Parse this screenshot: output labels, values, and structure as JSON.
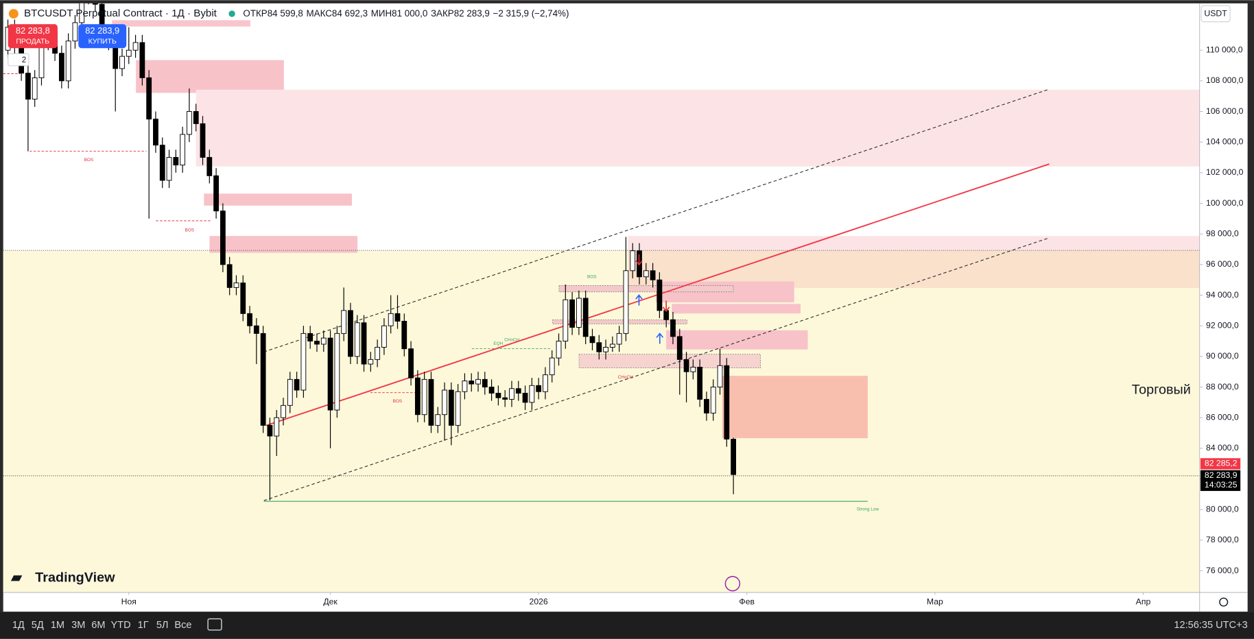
{
  "header": {
    "symbol": "BTCUSDT Perpetual Contract · 1Д · Bybit",
    "open_label": "ОТКР",
    "open": "84 599,8",
    "high_label": "МАКС",
    "high": "84 692,3",
    "low_label": "МИН",
    "low": "81 000,0",
    "close_label": "ЗАКР",
    "close": "82 283,9",
    "change": "−2 315,9 (−2,74%)"
  },
  "trade": {
    "sell_price": "82 283,8",
    "sell": "ПРОДАТЬ",
    "buy_price": "82 283,9",
    "buy": "КУПИТЬ",
    "quantity": "2"
  },
  "currency": "USDT",
  "brand": "TradingView",
  "annotations": [
    "BOS",
    "BOS",
    "BOS",
    "BOS",
    "CHoCH",
    "EQH",
    "CHoCH",
    "Strong Low",
    "Торговый"
  ],
  "price_labels": {
    "alert": "82 285,2",
    "last": "82 283,9",
    "countdown": "14:03:25"
  },
  "toolbar": {
    "ranges": [
      "1Д",
      "5Д",
      "1М",
      "3М",
      "6М",
      "YTD",
      "1Г",
      "5Л",
      "Все"
    ],
    "clock": "12:56:35 UTC+3"
  },
  "chart_data": {
    "type": "candlestick",
    "up_color": "#ffffff",
    "down_color": "#000000",
    "wick_color": "#000000",
    "x": [
      -18,
      -17,
      -16,
      -15,
      -14,
      -13,
      -12,
      -11,
      -10,
      -9,
      -8,
      -7,
      -6,
      -5,
      -4,
      -3,
      -2,
      -1,
      0,
      1,
      2,
      3,
      4,
      5,
      6,
      7,
      8,
      9,
      10,
      11,
      12,
      13,
      14,
      15,
      16,
      17,
      18,
      19,
      20,
      21,
      22,
      23,
      24,
      25,
      26,
      27,
      28,
      29,
      30,
      31,
      32,
      33,
      34,
      35,
      36,
      37,
      38,
      39,
      40,
      41,
      42,
      43,
      44,
      45,
      46,
      47,
      48,
      49,
      50,
      51,
      52,
      53,
      54,
      55,
      56,
      57,
      58,
      59,
      60,
      61,
      62,
      63,
      64,
      65,
      66,
      67,
      68,
      69,
      70,
      71,
      72,
      73,
      74,
      75,
      76,
      77,
      78,
      79,
      80,
      81,
      82,
      83,
      84,
      85,
      86,
      87,
      88,
      89,
      90
    ],
    "open": [
      110000,
      111500,
      110200,
      108500,
      106800,
      108200,
      110500,
      111200,
      109800,
      108000,
      110600,
      111800,
      113500,
      114200,
      113000,
      111000,
      110500,
      108800,
      109600,
      110000,
      110500,
      108200,
      105500,
      103800,
      101500,
      103000,
      102500,
      104500,
      106000,
      105200,
      103000,
      101800,
      99500,
      96000,
      94500,
      94800,
      92800,
      92000,
      91500,
      85500,
      84800,
      86000,
      86800,
      88500,
      87800,
      91500,
      91000,
      90800,
      91200,
      86500,
      91500,
      93000,
      90000,
      92200,
      89500,
      89800,
      90600,
      92000,
      92800,
      92300,
      90500,
      88600,
      86200,
      88500,
      85500,
      86200,
      87800,
      85500,
      87700,
      88400,
      88200,
      88500,
      88000,
      87600,
      87300,
      87200,
      87900,
      87600,
      87000,
      88100,
      87700,
      88800,
      89900,
      91000,
      93700,
      91900,
      93800,
      91300,
      90900,
      90300,
      90600,
      90800,
      91500,
      95600,
      96900,
      95200,
      95600,
      95000,
      93000,
      92400,
      91300,
      89800,
      89000,
      89300,
      87200,
      86300,
      88000,
      89400,
      84599.8
    ],
    "high": [
      112000,
      112000,
      110700,
      109000,
      108700,
      111000,
      111700,
      111700,
      110300,
      111100,
      112300,
      114000,
      114700,
      114700,
      113500,
      111500,
      111000,
      110100,
      111500,
      111000,
      111000,
      108700,
      106000,
      104300,
      103500,
      103500,
      105000,
      107500,
      106500,
      105700,
      103500,
      102300,
      100000,
      96500,
      95300,
      95300,
      93300,
      92500,
      92000,
      86000,
      86500,
      87300,
      89000,
      89000,
      92000,
      92000,
      91500,
      91700,
      91700,
      92000,
      94500,
      93500,
      92700,
      92700,
      90300,
      91100,
      92500,
      94000,
      94000,
      92800,
      91000,
      89100,
      89000,
      89000,
      86700,
      88300,
      88300,
      88200,
      88900,
      88900,
      89000,
      89000,
      88500,
      88100,
      87800,
      88400,
      88400,
      88100,
      88600,
      88600,
      89300,
      90400,
      91500,
      94700,
      94200,
      94300,
      94300,
      91800,
      91400,
      91100,
      91300,
      92000,
      97800,
      97400,
      97400,
      96100,
      96100,
      95500,
      93500,
      92900,
      91800,
      90300,
      89800,
      89800,
      87700,
      88500,
      90500,
      89900,
      84692.3
    ],
    "low": [
      109500,
      109700,
      108000,
      103400,
      106300,
      107700,
      110000,
      109300,
      107500,
      107500,
      110100,
      111300,
      113000,
      112500,
      110500,
      110000,
      106000,
      108300,
      109100,
      109500,
      107700,
      99000,
      103300,
      101000,
      101000,
      102000,
      102000,
      104000,
      104700,
      102500,
      101300,
      99000,
      95500,
      94000,
      94000,
      92300,
      91500,
      89500,
      85000,
      80600,
      83500,
      85500,
      86300,
      87300,
      87300,
      90500,
      90300,
      90300,
      84000,
      86000,
      91000,
      89500,
      89500,
      89000,
      89000,
      89300,
      90100,
      91500,
      91800,
      90000,
      88100,
      85700,
      85700,
      85000,
      85000,
      84500,
      84200,
      85000,
      87200,
      87700,
      87700,
      87500,
      87100,
      86800,
      86700,
      86700,
      87100,
      86500,
      86500,
      87200,
      87200,
      88300,
      89400,
      90500,
      91400,
      91400,
      90800,
      90400,
      89800,
      89800,
      90300,
      90300,
      91000,
      95100,
      94700,
      94700,
      94500,
      92500,
      91900,
      90800,
      87500,
      87000,
      88500,
      86700,
      85800,
      85800,
      87500,
      84100,
      81000
    ],
    "close": [
      111500,
      110200,
      108500,
      106800,
      108200,
      110500,
      111200,
      109800,
      108000,
      110600,
      111800,
      113500,
      114200,
      113000,
      111000,
      110500,
      108800,
      109600,
      110000,
      110500,
      108200,
      105500,
      103800,
      101500,
      103000,
      102500,
      104500,
      106000,
      105200,
      103000,
      101800,
      99500,
      96000,
      94500,
      94800,
      92800,
      92000,
      91500,
      85500,
      84800,
      86000,
      86800,
      88500,
      87800,
      91500,
      91000,
      90800,
      91200,
      86500,
      91500,
      93000,
      90000,
      92200,
      89500,
      89800,
      90600,
      92000,
      92800,
      92300,
      90500,
      88600,
      86200,
      88500,
      85500,
      86200,
      87800,
      85500,
      87700,
      88400,
      88200,
      88500,
      88000,
      87600,
      87300,
      87200,
      87900,
      87600,
      87000,
      88100,
      87700,
      88800,
      89900,
      91000,
      93700,
      91900,
      93800,
      91300,
      90900,
      90300,
      90600,
      90800,
      91500,
      95600,
      96900,
      95200,
      95600,
      95000,
      93000,
      92400,
      91300,
      89800,
      89000,
      89300,
      87200,
      86300,
      88000,
      89400,
      84600,
      82283.9
    ],
    "xlim": [
      -18.7,
      159.4
    ],
    "xticks": [
      {
        "value": 0,
        "label": "Ноя"
      },
      {
        "value": 30,
        "label": "Дек"
      },
      {
        "value": 61,
        "label": "2026"
      },
      {
        "value": 92,
        "label": "Фев"
      },
      {
        "value": 120,
        "label": "Мар"
      },
      {
        "value": 151,
        "label": "Апр"
      }
    ],
    "ylim": [
      74585,
      113058
    ],
    "yticks": [
      {
        "value": 76000,
        "label": "76 000,0"
      },
      {
        "value": 78000,
        "label": "78 000,0"
      },
      {
        "value": 80000,
        "label": "80 000,0"
      },
      {
        "value": 82000,
        "label": "82 000,0"
      },
      {
        "value": 84000,
        "label": "84 000,0"
      },
      {
        "value": 86000,
        "label": "86 000,0"
      },
      {
        "value": 88000,
        "label": "88 000,0"
      },
      {
        "value": 90000,
        "label": "90 000,0"
      },
      {
        "value": 92000,
        "label": "92 000,0"
      },
      {
        "value": 94000,
        "label": "94 000,0"
      },
      {
        "value": 96000,
        "label": "96 000,0"
      },
      {
        "value": 98000,
        "label": "98 000,0"
      },
      {
        "value": 100000,
        "label": "100 000,0"
      },
      {
        "value": 102000,
        "label": "102 000,0"
      },
      {
        "value": 104000,
        "label": "104 000,0"
      },
      {
        "value": 106000,
        "label": "106 000,0"
      },
      {
        "value": 108000,
        "label": "108 000,0"
      },
      {
        "value": 110000,
        "label": "110 000,0"
      }
    ],
    "grid": false
  }
}
